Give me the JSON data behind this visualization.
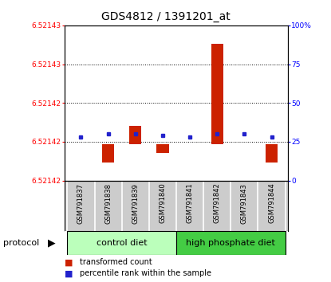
{
  "title": "GDS4812 / 1391201_at",
  "samples": [
    "GSM791837",
    "GSM791838",
    "GSM791839",
    "GSM791840",
    "GSM791841",
    "GSM791842",
    "GSM791843",
    "GSM791844"
  ],
  "bar_values": [
    6.52142,
    6.521418,
    6.521422,
    6.521419,
    6.52142,
    6.521431,
    6.52142,
    6.521418
  ],
  "percentile_vals": [
    28,
    30,
    30,
    29,
    28,
    30,
    30,
    28
  ],
  "bar_color": "#cc2200",
  "dot_color": "#2222cc",
  "ymin": 6.521416,
  "ymax": 6.521433,
  "baseline": 6.52142,
  "right_ticks": [
    0,
    25,
    50,
    75,
    100
  ],
  "bar_width": 0.45,
  "ctrl_color": "#bbffbb",
  "high_color": "#44cc44",
  "sample_bg": "#cccccc",
  "legend_red": "transformed count",
  "legend_blue": "percentile rank within the sample",
  "protocol_label": "protocol"
}
